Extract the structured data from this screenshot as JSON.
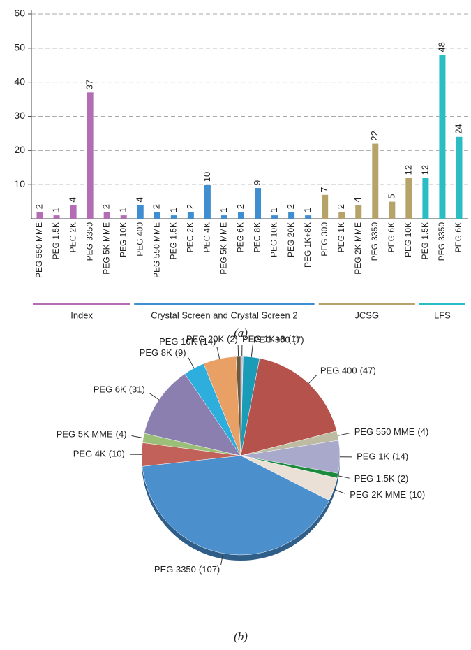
{
  "chart_data": [
    {
      "type": "bar",
      "caption": "(a)",
      "ylim": [
        0,
        60
      ],
      "yticks": [
        10,
        20,
        30,
        40,
        50,
        60
      ],
      "grid": true,
      "groups": [
        {
          "name": "Index",
          "color": "#b36db3",
          "categories": [
            "PEG 550 MME",
            "PEG 1.5K",
            "PEG 2K",
            "PEG 3350",
            "PEG 5K MME",
            "PEG 10K"
          ],
          "values": [
            2,
            1,
            4,
            37,
            2,
            1
          ]
        },
        {
          "name": "Crystal Screen and Crystal Screen 2",
          "color": "#3f8fd0",
          "categories": [
            "PEG 400",
            "PEG 550 MME",
            "PEG 1.5K",
            "PEG 2K",
            "PEG 4K",
            "PEG 5K MME",
            "PEG 6K",
            "PEG 8K",
            "PEG 10K",
            "PEG 20K",
            "PEG 1K+8K"
          ],
          "values": [
            4,
            2,
            1,
            2,
            10,
            1,
            2,
            9,
            1,
            2,
            1
          ]
        },
        {
          "name": "JCSG",
          "color": "#b5a36a",
          "categories": [
            "PEG 300",
            "PEG 1K",
            "PEG 2K MME",
            "PEG 3350",
            "PEG 6K",
            "PEG 10K"
          ],
          "values": [
            7,
            2,
            4,
            22,
            5,
            12
          ]
        },
        {
          "name": "LFS",
          "color": "#2bbcc4",
          "categories": [
            "PEG 1.5K",
            "PEG 3350",
            "PEG 6K"
          ],
          "values": [
            12,
            48,
            24
          ]
        }
      ]
    },
    {
      "type": "pie",
      "caption": "(b)",
      "categories": [
        "PEG 1K+8",
        "PEG 300",
        "PEG 400",
        "PEG 550 MME",
        "PEG 1K",
        "PEG 1.5K",
        "PEG 2K MME",
        "PEG 3350",
        "PEG 4K",
        "PEG 5K MME",
        "PEG 6K",
        "PEG 8K",
        "PEG 10K",
        "PEG 20K"
      ],
      "values": [
        1,
        7,
        47,
        4,
        14,
        2,
        10,
        107,
        10,
        4,
        31,
        9,
        14,
        2
      ],
      "value_labels": [
        "(1)",
        "(7)",
        "(47)",
        "(4)",
        "(14)",
        "(2)",
        "(10)",
        "(107)",
        "(10)",
        "(4)",
        "(31)",
        "(9)",
        "(14)",
        "(2)"
      ],
      "colors": [
        "#c9c3de",
        "#1a9bb8",
        "#b5524c",
        "#bdbba2",
        "#a9a9cc",
        "#1b8a3c",
        "#ebe0d6",
        "#4b8fcd",
        "#c2615a",
        "#9bbf78",
        "#8a7fae",
        "#2eaedc",
        "#e9a065",
        "#6b5a3f"
      ]
    }
  ]
}
